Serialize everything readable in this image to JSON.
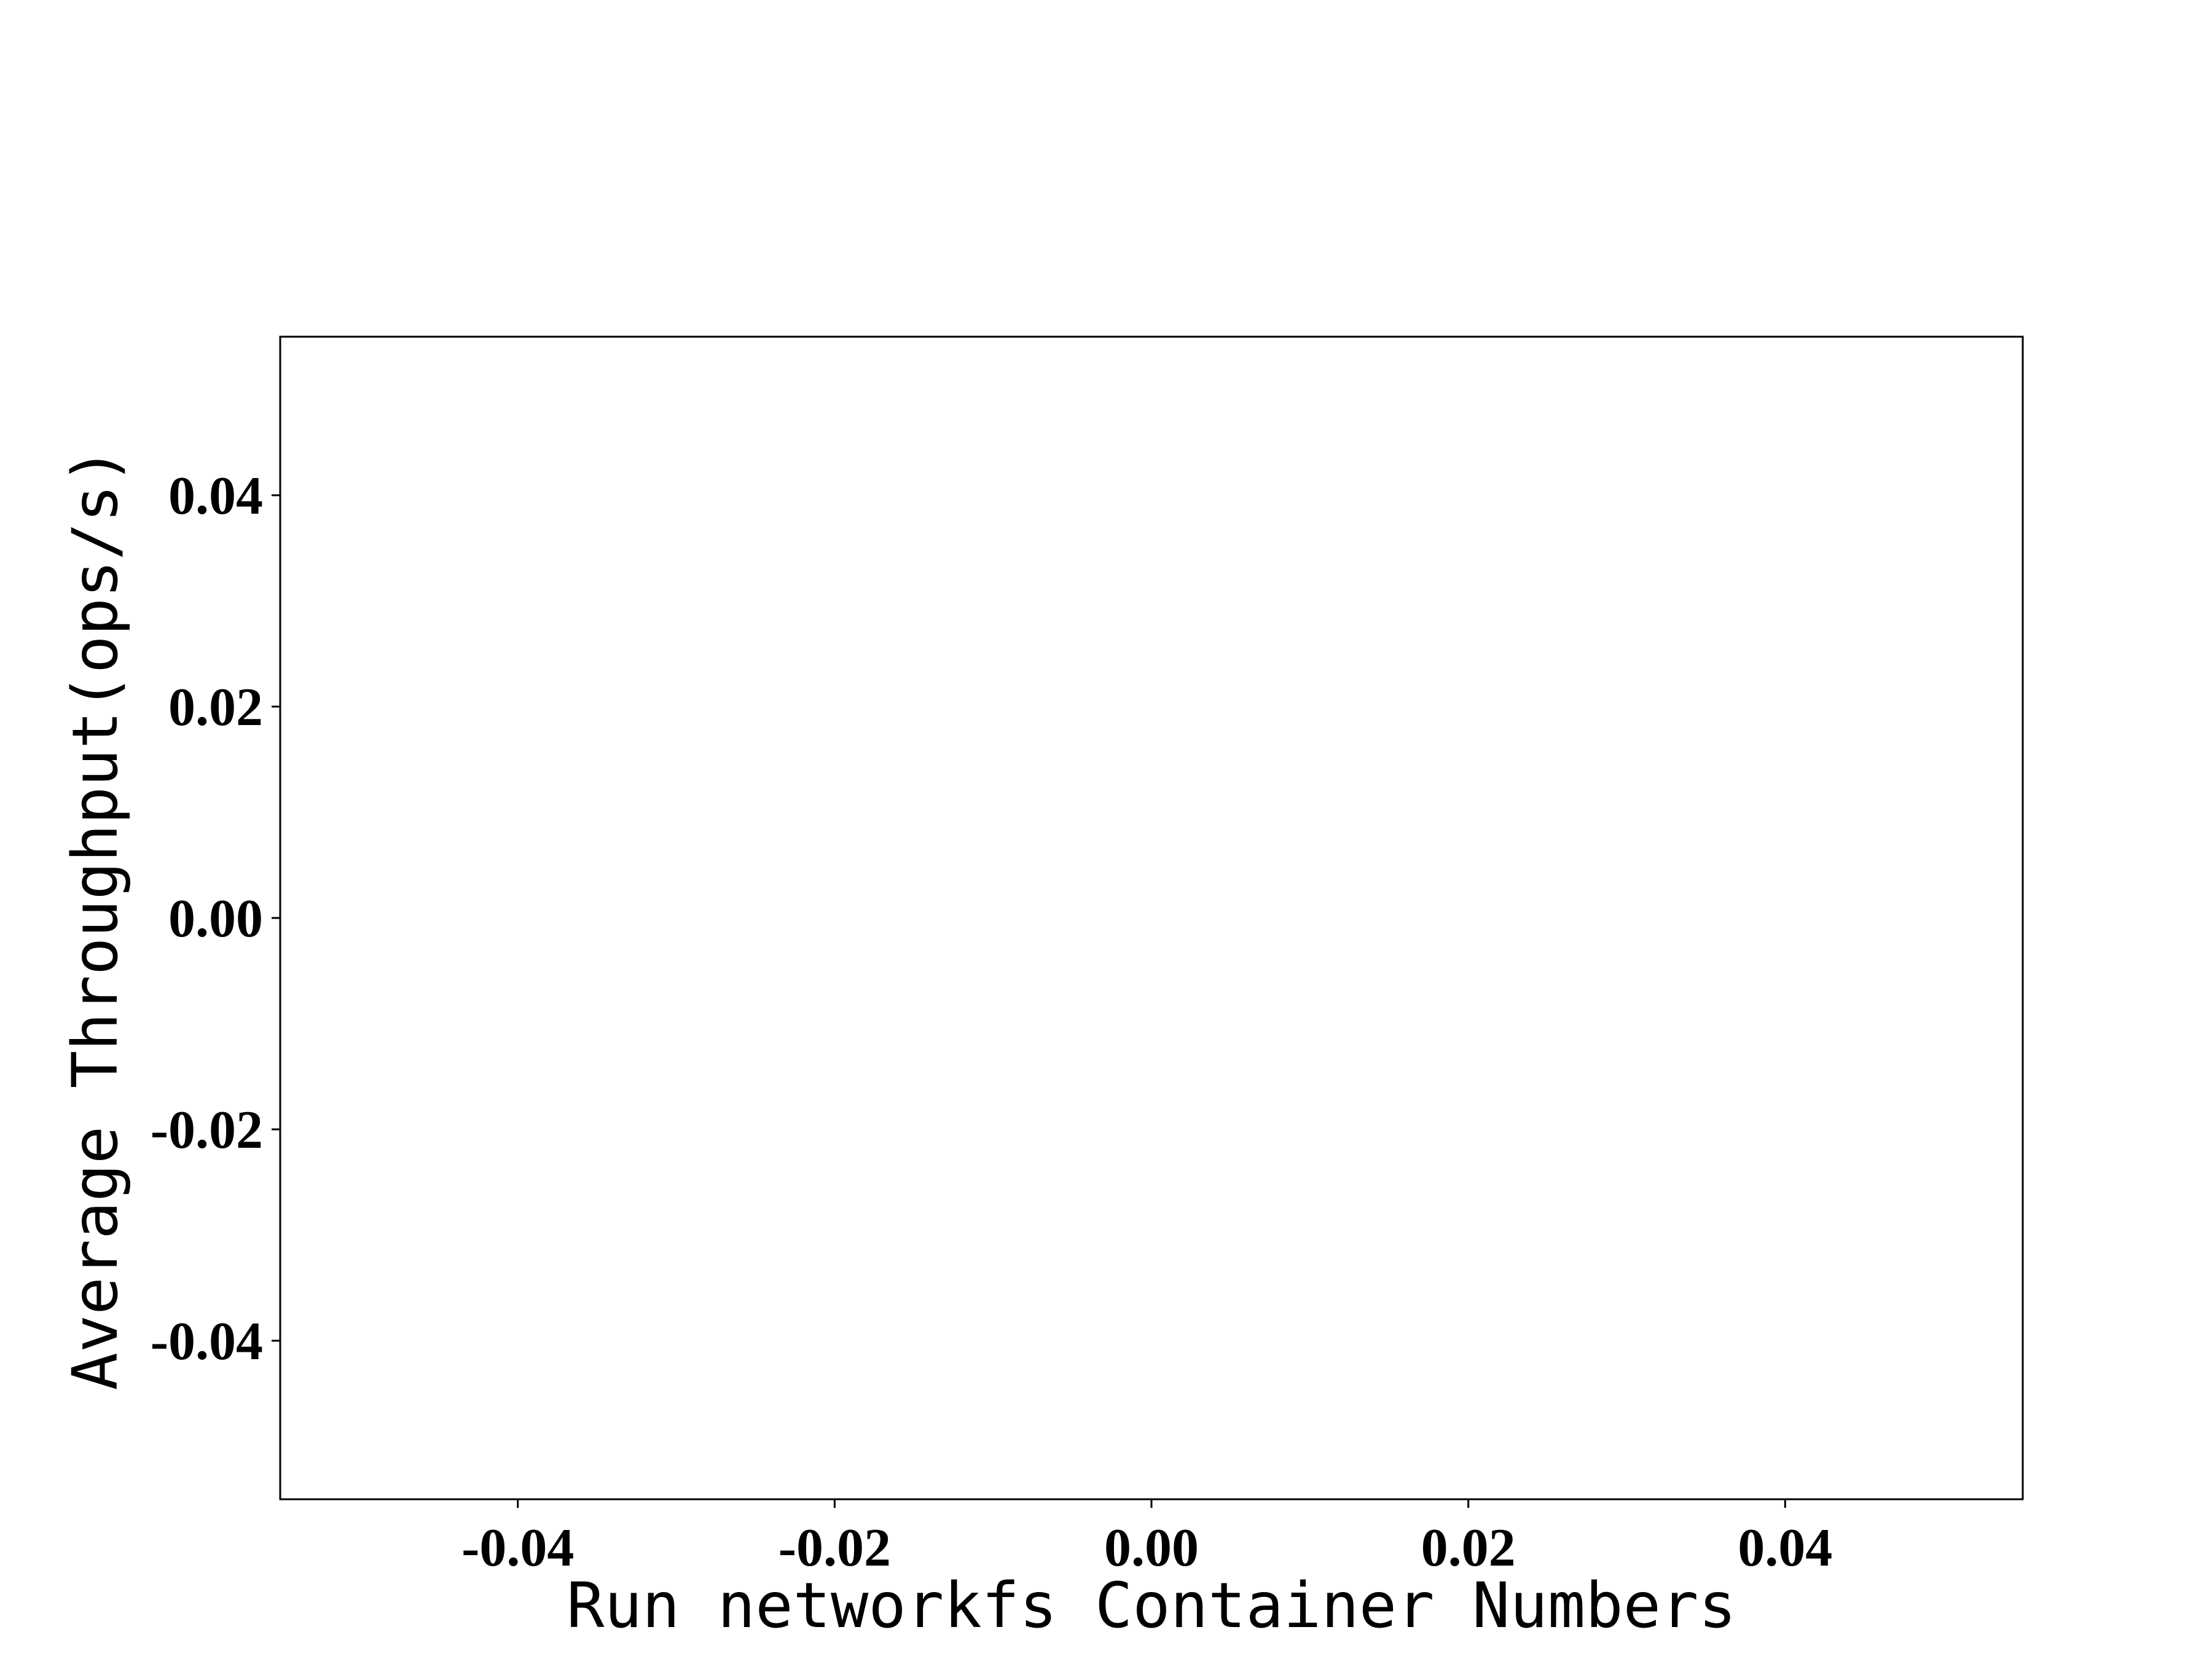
{
  "chart_data": {
    "type": "line",
    "title": "",
    "xlabel": "Run networkfs Container Numbers",
    "ylabel": "Average Throughput(ops/s)",
    "xlim": [
      -0.055,
      0.055
    ],
    "ylim": [
      -0.055,
      0.055
    ],
    "xticks": [
      -0.04,
      -0.02,
      0.0,
      0.02,
      0.04
    ],
    "xtick_labels": [
      "-0.04",
      "-0.02",
      "0.00",
      "0.02",
      "0.04"
    ],
    "yticks": [
      -0.04,
      -0.02,
      0.0,
      0.02,
      0.04
    ],
    "ytick_labels": [
      "-0.04",
      "-0.02",
      "0.00",
      "0.02",
      "0.04"
    ],
    "series": [],
    "grid": false,
    "legend": "none"
  }
}
